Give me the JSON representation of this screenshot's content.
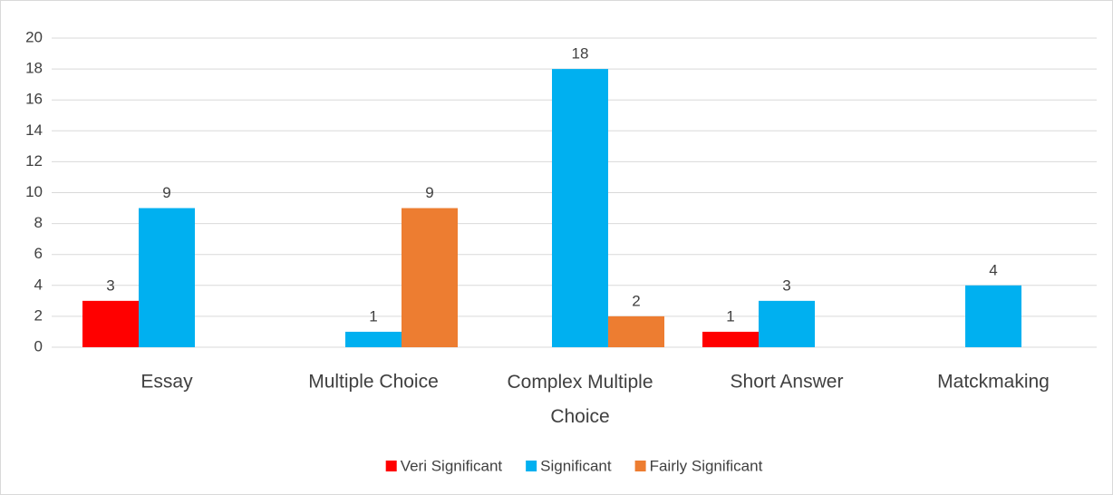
{
  "chart_data": {
    "type": "bar",
    "categories": [
      "Essay",
      "Multiple Choice",
      "Complex Multiple Choice",
      "Short Answer",
      "Matckmaking"
    ],
    "series": [
      {
        "name": "Veri Significant",
        "color": "#ff0000",
        "values": [
          3,
          null,
          null,
          1,
          null
        ]
      },
      {
        "name": "Significant",
        "color": "#00b0f0",
        "values": [
          9,
          1,
          18,
          3,
          4
        ]
      },
      {
        "name": "Fairly Significant",
        "color": "#ed7d31",
        "values": [
          null,
          9,
          2,
          null,
          null
        ]
      }
    ],
    "ylim": [
      0,
      20
    ],
    "yticks": [
      0,
      2,
      4,
      6,
      8,
      10,
      12,
      14,
      16,
      18,
      20
    ],
    "grid": true,
    "legend": "bottom"
  }
}
